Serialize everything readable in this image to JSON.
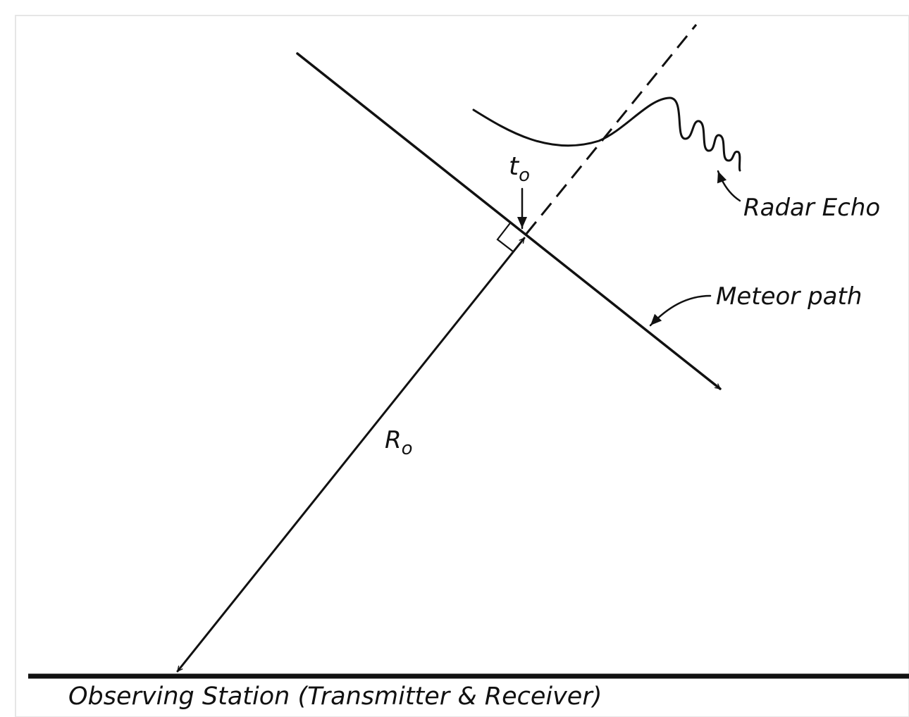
{
  "labels": {
    "closest_time": {
      "text": "t",
      "subscript": "o"
    },
    "radar_echo": "Radar Echo",
    "meteor_path": "Meteor path",
    "range": {
      "text": "R",
      "subscript": "o"
    },
    "station": "Observing Station (Transmitter & Receiver)"
  }
}
